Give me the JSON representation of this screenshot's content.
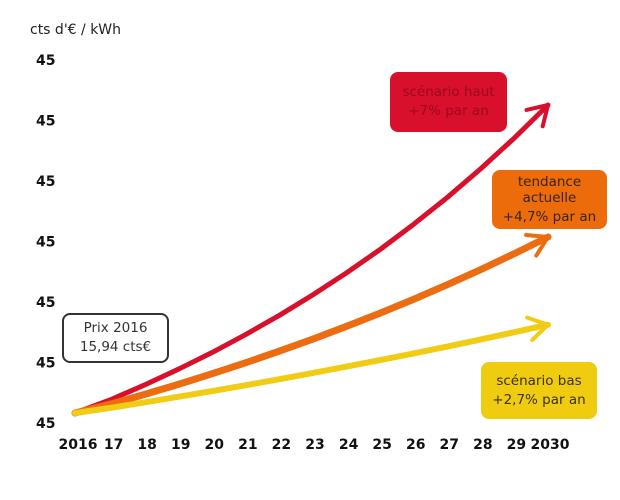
{
  "chart_data": {
    "type": "line",
    "title": "",
    "ylabel": "cts d'€ / kWh",
    "xlabel": "",
    "x_tick_labels": [
      "2016",
      "17",
      "18",
      "19",
      "20",
      "21",
      "22",
      "23",
      "24",
      "25",
      "26",
      "27",
      "28",
      "29",
      "2030"
    ],
    "y_tick_labels": [
      "45",
      "45",
      "45",
      "45",
      "45",
      "45",
      "45"
    ],
    "x": [
      2016,
      2017,
      2018,
      2019,
      2020,
      2021,
      2022,
      2023,
      2024,
      2025,
      2026,
      2027,
      2028,
      2029,
      2030
    ],
    "start_price": 15.94,
    "series": [
      {
        "name": "scénario haut",
        "growth_pct": 7,
        "color": "#d8102c",
        "values": [
          15.94,
          17.06,
          18.25,
          19.53,
          20.89,
          22.36,
          23.92,
          25.6,
          27.39,
          29.3,
          31.36,
          33.55,
          35.9,
          38.41,
          41.1
        ]
      },
      {
        "name": "tendance actuelle",
        "growth_pct": 4.7,
        "color": "#ec6c12",
        "values": [
          15.94,
          16.69,
          17.47,
          18.29,
          19.15,
          20.05,
          21.0,
          21.98,
          23.02,
          24.1,
          25.23,
          26.42,
          27.66,
          28.96,
          30.32
        ]
      },
      {
        "name": "scénario bas",
        "growth_pct": 2.7,
        "color": "#f0cc14",
        "values": [
          15.94,
          16.37,
          16.81,
          17.27,
          17.73,
          18.21,
          18.7,
          19.21,
          19.73,
          20.26,
          20.81,
          21.37,
          21.95,
          22.54,
          23.15
        ]
      }
    ],
    "ylim": [
      15.94,
      41.1
    ],
    "grid": false,
    "legend": "annotations"
  },
  "annotations": {
    "start": {
      "line1": "Prix 2016",
      "line2": "15,94 cts€"
    },
    "high": {
      "line1": "scénario haut",
      "line2": "+7% par an",
      "bg": "#d8102c",
      "fg": "#9a0a1e"
    },
    "trend": {
      "line1": "tendance",
      "line2": "actuelle",
      "line3": "+4,7% par an",
      "bg": "#ec6c0c",
      "fg": "#3a2418"
    },
    "low": {
      "line1": "scénario bas",
      "line2": "+2,7% par an",
      "bg": "#f0cc10",
      "fg": "#3a3010"
    }
  }
}
